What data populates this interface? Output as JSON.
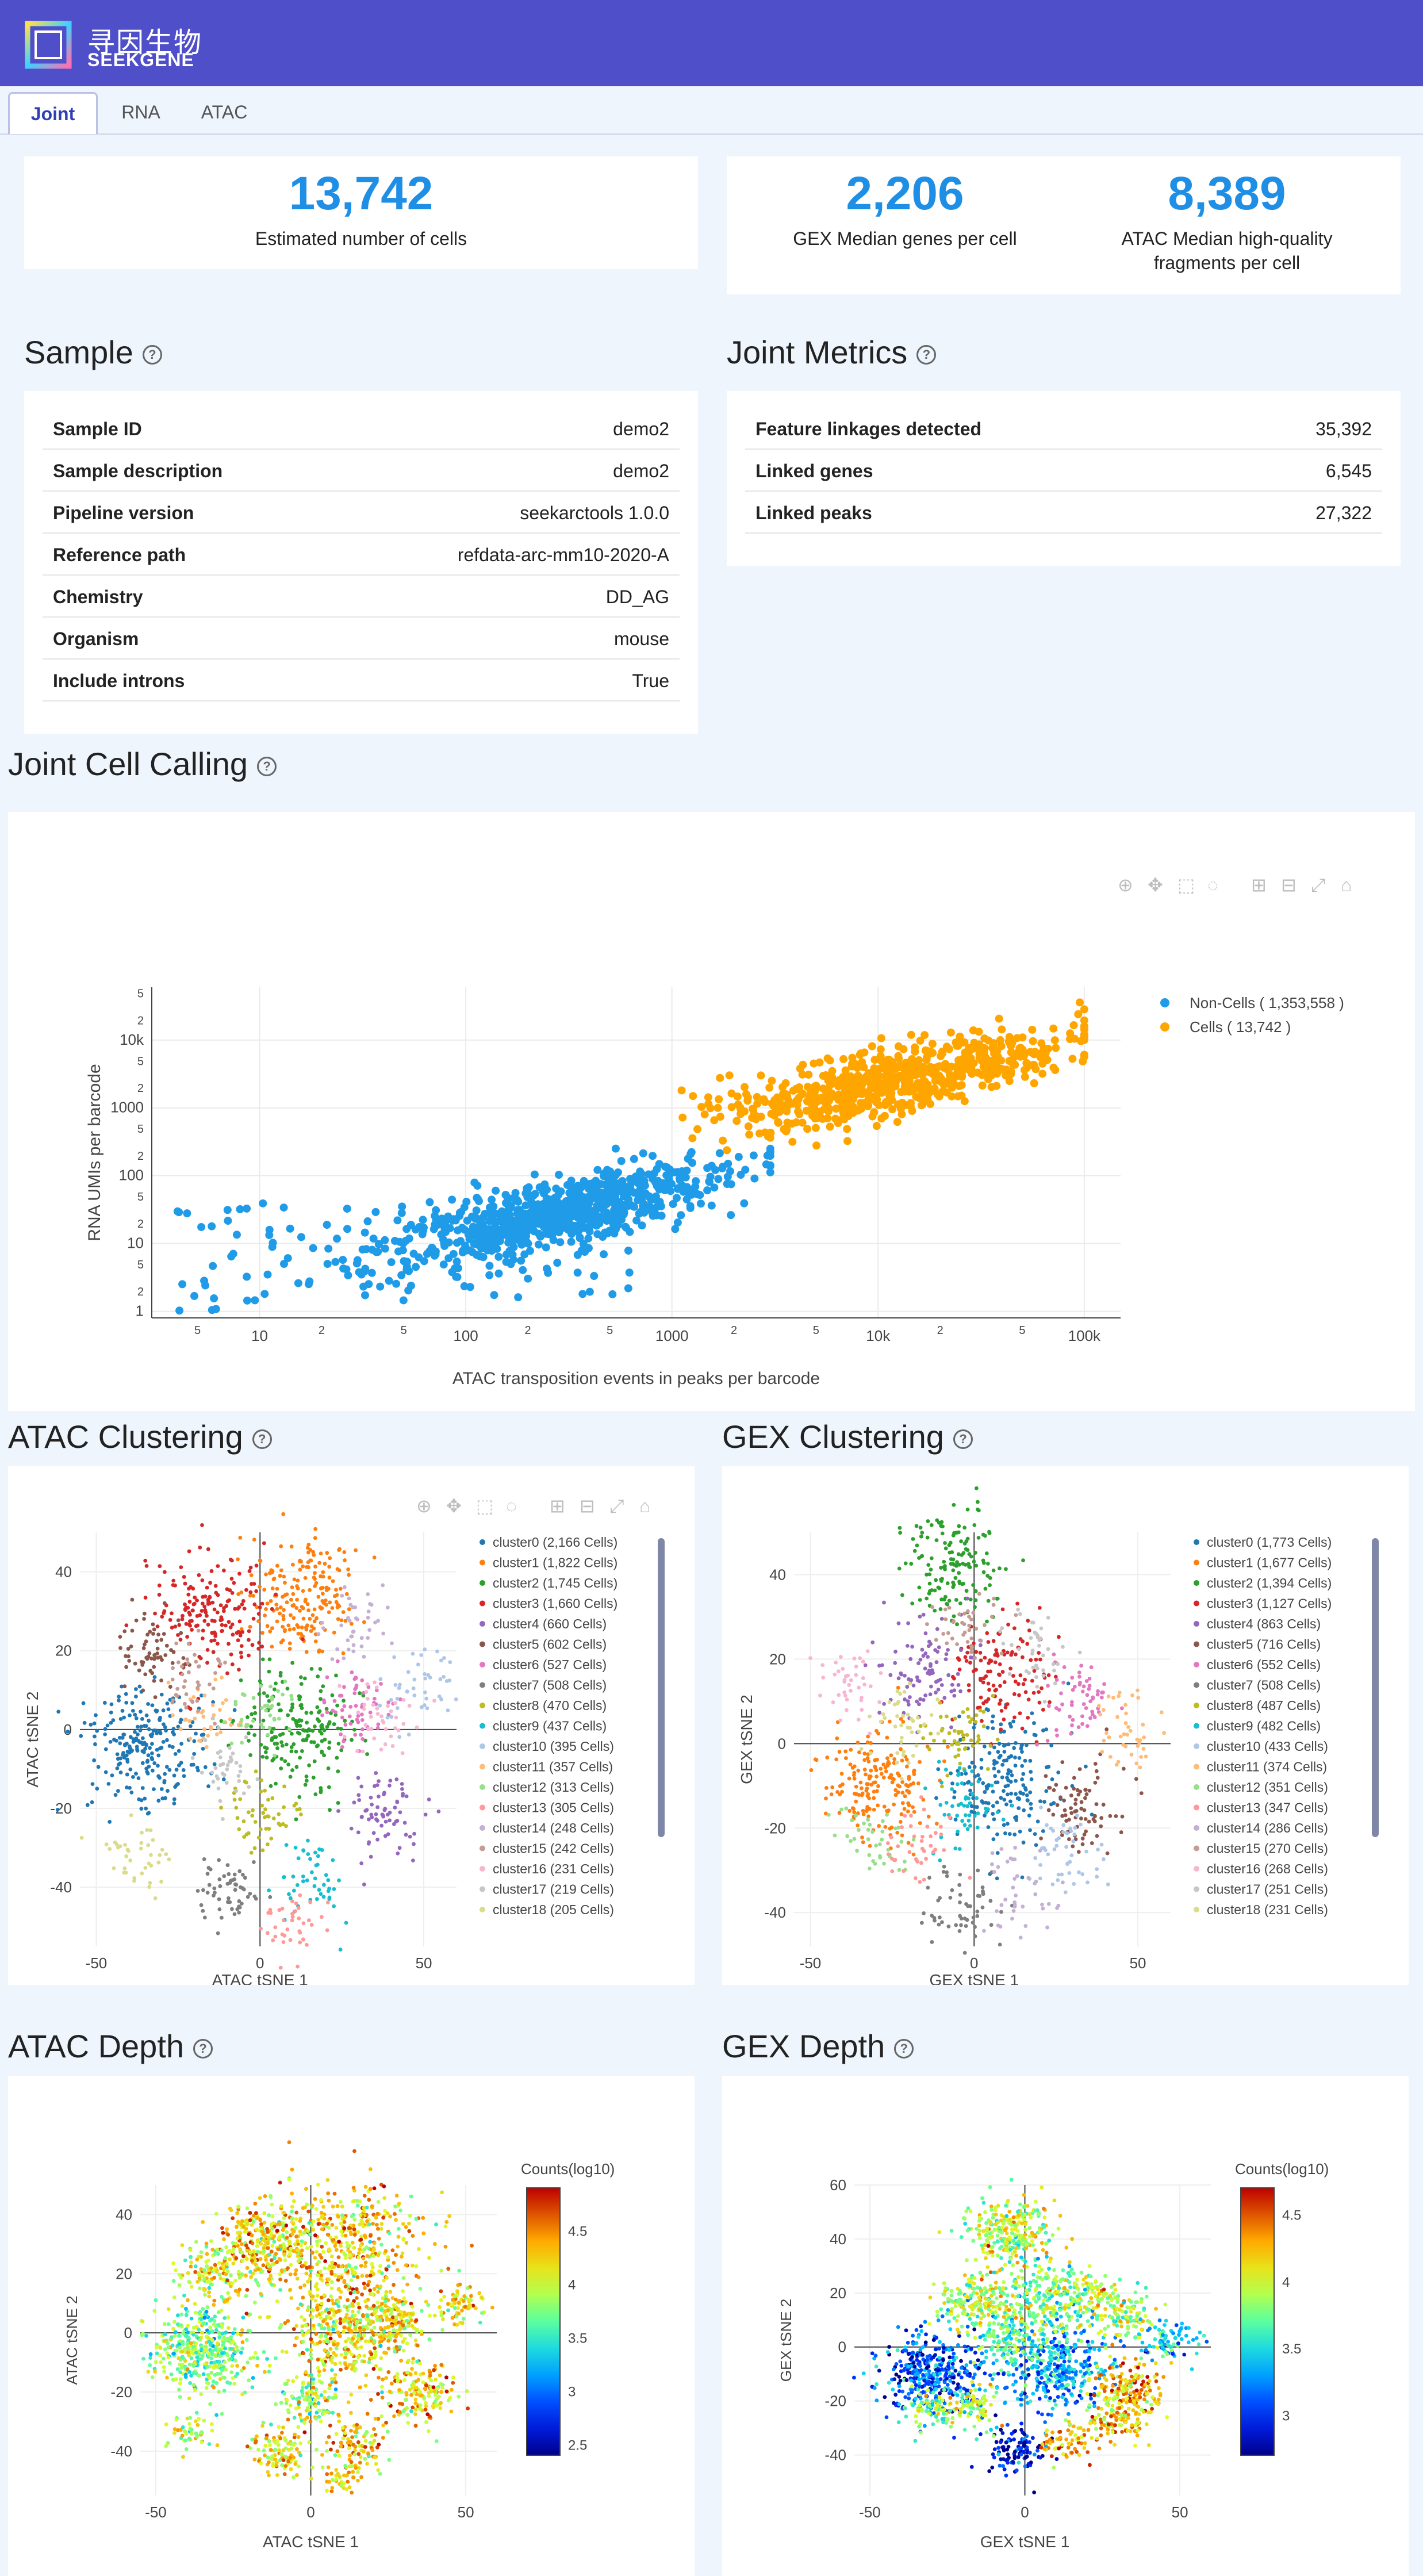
{
  "header": {
    "brand_cn": "寻因生物",
    "brand_en": "SEEKGENE",
    "bg_color": "#4f4fc9"
  },
  "tabs": [
    {
      "label": "Joint",
      "active": true
    },
    {
      "label": "RNA",
      "active": false
    },
    {
      "label": "ATAC",
      "active": false
    }
  ],
  "summary": {
    "cells_value": "13,742",
    "cells_caption": "Estimated number of cells",
    "gex_value": "2,206",
    "gex_caption": "GEX Median genes per cell",
    "atac_value": "8,389",
    "atac_caption_line1": "ATAC Median high-quality",
    "atac_caption_line2": "fragments per cell"
  },
  "sample": {
    "title": "Sample",
    "help_icon": "?",
    "rows": [
      {
        "key": "Sample ID",
        "value": "demo2"
      },
      {
        "key": "Sample description",
        "value": "demo2"
      },
      {
        "key": "Pipeline version",
        "value": "seekarctools 1.0.0"
      },
      {
        "key": "Reference path",
        "value": "refdata-arc-mm10-2020-A"
      },
      {
        "key": "Chemistry",
        "value": "DD_AG"
      },
      {
        "key": "Organism",
        "value": "mouse"
      },
      {
        "key": "Include introns",
        "value": "True"
      }
    ]
  },
  "joint_metrics": {
    "title": "Joint Metrics",
    "rows": [
      {
        "key": "Feature linkages detected",
        "value": "35,392"
      },
      {
        "key": "Linked genes",
        "value": "6,545"
      },
      {
        "key": "Linked peaks",
        "value": "27,322"
      }
    ]
  },
  "sections": {
    "joint_cell_calling": "Joint Cell Calling",
    "atac_clustering": "ATAC Clustering",
    "gex_clustering": "GEX Clustering",
    "atac_depth": "ATAC Depth",
    "gex_depth": "GEX Depth"
  },
  "toolbar_icons": [
    "zoom-icon",
    "pan-icon",
    "box-select-icon",
    "lasso-icon",
    "zoom-in-icon",
    "zoom-out-icon",
    "autoscale-icon",
    "reset-axes-icon"
  ],
  "chart_data": [
    {
      "type": "scatter",
      "id": "joint-cell-calling",
      "xlabel": "ATAC transposition events in peaks per barcode",
      "ylabel": "RNA UMIs per barcode",
      "x_scale": "log",
      "y_scale": "log",
      "xlim": [
        3,
        150000
      ],
      "ylim": [
        0.8,
        60000
      ],
      "x_tick_labels": [
        "5",
        "10",
        "2",
        "5",
        "100",
        "2",
        "5",
        "1000",
        "2",
        "5",
        "10k",
        "2",
        "5",
        "100k"
      ],
      "y_tick_labels": [
        "1",
        "2",
        "5",
        "10",
        "2",
        "5",
        "100",
        "2",
        "5",
        "1000",
        "2",
        "5",
        "10k",
        "2",
        "5"
      ],
      "grid": true,
      "legend_position": "top-right",
      "series": [
        {
          "name": "Non-Cells ( 1,353,558 )",
          "color": "#1f9be8",
          "cluster_center": [
            300,
            30
          ],
          "x_range": [
            4,
            3000
          ],
          "y_range": [
            1,
            2000
          ]
        },
        {
          "name": "Cells ( 13,742 )",
          "color": "#ffa500",
          "cluster_center": [
            12000,
            2500
          ],
          "x_range": [
            150,
            100000
          ],
          "y_range": [
            30,
            40000
          ]
        }
      ]
    },
    {
      "type": "scatter",
      "id": "atac-clustering",
      "xlabel": "ATAC tSNE 1",
      "ylabel": "ATAC tSNE 2",
      "xlim": [
        -55,
        60
      ],
      "ylim": [
        -55,
        50
      ],
      "x_ticks": [
        -50,
        0,
        50
      ],
      "y_ticks": [
        -40,
        -20,
        0,
        20,
        40
      ],
      "legend_position": "right",
      "series": [
        {
          "name": "cluster0 (2,166 Cells)",
          "color": "#1f77b4",
          "center": [
            -35,
            -5
          ]
        },
        {
          "name": "cluster1 (1,822 Cells)",
          "color": "#ff7f0e",
          "center": [
            12,
            33
          ]
        },
        {
          "name": "cluster2 (1,745 Cells)",
          "color": "#2ca02c",
          "center": [
            12,
            0
          ]
        },
        {
          "name": "cluster3 (1,660 Cells)",
          "color": "#d62728",
          "center": [
            -15,
            30
          ]
        },
        {
          "name": "cluster4 (660 Cells)",
          "color": "#9467bd",
          "center": [
            37,
            -20
          ]
        },
        {
          "name": "cluster5 (602 Cells)",
          "color": "#8c564b",
          "center": [
            -33,
            20
          ]
        },
        {
          "name": "cluster6 (527 Cells)",
          "color": "#e377c2",
          "center": [
            30,
            5
          ]
        },
        {
          "name": "cluster7 (508 Cells)",
          "color": "#7f7f7f",
          "center": [
            -10,
            -40
          ]
        },
        {
          "name": "cluster8 (470 Cells)",
          "color": "#bcbd22",
          "center": [
            0,
            -22
          ]
        },
        {
          "name": "cluster9 (437 Cells)",
          "color": "#17becf",
          "center": [
            15,
            -37
          ]
        },
        {
          "name": "cluster10 (395 Cells)",
          "color": "#aec7e8",
          "center": [
            48,
            10
          ]
        },
        {
          "name": "cluster11 (357 Cells)",
          "color": "#ffbb78",
          "center": [
            -17,
            3
          ]
        },
        {
          "name": "cluster12 (313 Cells)",
          "color": "#98df8a",
          "center": [
            0,
            5
          ]
        },
        {
          "name": "cluster13 (305 Cells)",
          "color": "#ff9896",
          "center": [
            10,
            -48
          ]
        },
        {
          "name": "cluster14 (248 Cells)",
          "color": "#c5b0d5",
          "center": [
            30,
            27
          ]
        },
        {
          "name": "cluster15 (242 Cells)",
          "color": "#c49c94",
          "center": [
            -20,
            13
          ]
        },
        {
          "name": "cluster16 (231 Cells)",
          "color": "#f7b6d2",
          "center": [
            38,
            2
          ]
        },
        {
          "name": "cluster17 (219 Cells)",
          "color": "#c7c7c7",
          "center": [
            -10,
            -10
          ]
        },
        {
          "name": "cluster18 (205 Cells)",
          "color": "#dbdb8d",
          "center": [
            -38,
            -33
          ]
        }
      ]
    },
    {
      "type": "scatter",
      "id": "gex-clustering",
      "xlabel": "GEX tSNE 1",
      "ylabel": "GEX tSNE 2",
      "xlim": [
        -55,
        60
      ],
      "ylim": [
        -48,
        50
      ],
      "x_ticks": [
        -50,
        0,
        50
      ],
      "y_ticks": [
        -40,
        -20,
        0,
        20,
        40
      ],
      "legend_position": "right",
      "series": [
        {
          "name": "cluster0 (1,773 Cells)",
          "color": "#1f77b4",
          "center": [
            10,
            -8
          ]
        },
        {
          "name": "cluster1 (1,677 Cells)",
          "color": "#ff7f0e",
          "center": [
            -30,
            -10
          ]
        },
        {
          "name": "cluster2 (1,394 Cells)",
          "color": "#2ca02c",
          "center": [
            -5,
            42
          ]
        },
        {
          "name": "cluster3 (1,127 Cells)",
          "color": "#d62728",
          "center": [
            8,
            17
          ]
        },
        {
          "name": "cluster4 (863 Cells)",
          "color": "#9467bd",
          "center": [
            -15,
            17
          ]
        },
        {
          "name": "cluster5 (716 Cells)",
          "color": "#8c564b",
          "center": [
            33,
            -15
          ]
        },
        {
          "name": "cluster6 (552 Cells)",
          "color": "#e377c2",
          "center": [
            32,
            12
          ]
        },
        {
          "name": "cluster7 (508 Cells)",
          "color": "#7f7f7f",
          "center": [
            -4,
            -38
          ]
        },
        {
          "name": "cluster8 (487 Cells)",
          "color": "#bcbd22",
          "center": [
            -5,
            2
          ]
        },
        {
          "name": "cluster9 (482 Cells)",
          "color": "#17becf",
          "center": [
            -4,
            -15
          ]
        },
        {
          "name": "cluster10 (433 Cells)",
          "color": "#aec7e8",
          "center": [
            30,
            -27
          ]
        },
        {
          "name": "cluster11 (374 Cells)",
          "color": "#ffbb78",
          "center": [
            47,
            2
          ]
        },
        {
          "name": "cluster12 (351 Cells)",
          "color": "#98df8a",
          "center": [
            -30,
            -23
          ]
        },
        {
          "name": "cluster13 (347 Cells)",
          "color": "#ff9896",
          "center": [
            -17,
            -23
          ]
        },
        {
          "name": "cluster14 (286 Cells)",
          "color": "#c5b0d5",
          "center": [
            13,
            -35
          ]
        },
        {
          "name": "cluster15 (270 Cells)",
          "color": "#c49c94",
          "center": [
            -3,
            27
          ]
        },
        {
          "name": "cluster16 (268 Cells)",
          "color": "#f7b6d2",
          "center": [
            -38,
            12
          ]
        },
        {
          "name": "cluster17 (251 Cells)",
          "color": "#c7c7c7",
          "center": [
            20,
            22
          ]
        },
        {
          "name": "cluster18 (231 Cells)",
          "color": "#dbdb8d",
          "center": [
            -22,
            5
          ]
        }
      ]
    },
    {
      "type": "scatter",
      "id": "atac-depth",
      "xlabel": "ATAC tSNE 1",
      "ylabel": "ATAC tSNE 2",
      "xlim": [
        -55,
        60
      ],
      "ylim": [
        -55,
        50
      ],
      "x_ticks": [
        -50,
        0,
        50
      ],
      "y_ticks": [
        -40,
        -20,
        0,
        20,
        40
      ],
      "colorbar_title": "Counts(log10)",
      "colorbar_ticks": [
        2.5,
        3,
        3.5,
        4,
        4.5
      ],
      "colorbar_range": [
        2.4,
        4.9
      ]
    },
    {
      "type": "scatter",
      "id": "gex-depth",
      "xlabel": "GEX tSNE 1",
      "ylabel": "GEX tSNE 2",
      "xlim": [
        -55,
        60
      ],
      "ylim": [
        -55,
        60
      ],
      "x_ticks": [
        -50,
        0,
        50
      ],
      "y_ticks": [
        -40,
        -20,
        0,
        20,
        40,
        60
      ],
      "colorbar_title": "Counts(log10)",
      "colorbar_ticks": [
        3,
        3.5,
        4,
        4.5
      ],
      "colorbar_range": [
        2.7,
        4.7
      ]
    }
  ]
}
